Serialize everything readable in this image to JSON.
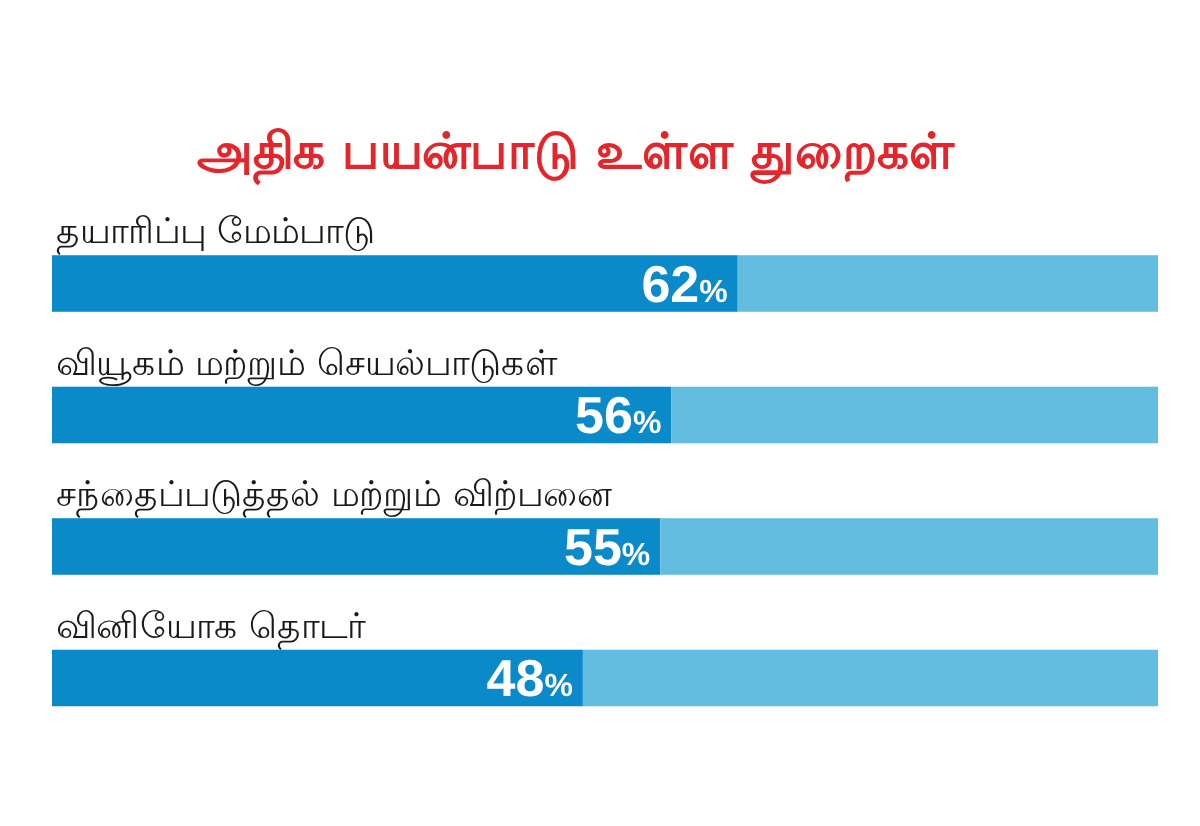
{
  "chart_data": {
    "type": "bar",
    "orientation": "horizontal",
    "stacked": true,
    "title": "அதிக பயன்பாடு உள்ள துறைகள்",
    "categories": [
      "தயாரிப்பு மேம்பாடு",
      "வியூகம் மற்றும் செயல்பாடுகள்",
      "சந்தைப்படுத்தல் மற்றும் விற்பனை",
      "வினியோக தொடர்"
    ],
    "series": [
      {
        "color": "#0a8ac8",
        "values": [
          62,
          56,
          55,
          48
        ],
        "value_labels": [
          "62%",
          "56%",
          "55%",
          "48%"
        ]
      },
      {
        "color": "#62bde0",
        "values": [
          38,
          44,
          45,
          52
        ]
      }
    ],
    "xlim": [
      0,
      100
    ],
    "tick_labels": "y"
  }
}
